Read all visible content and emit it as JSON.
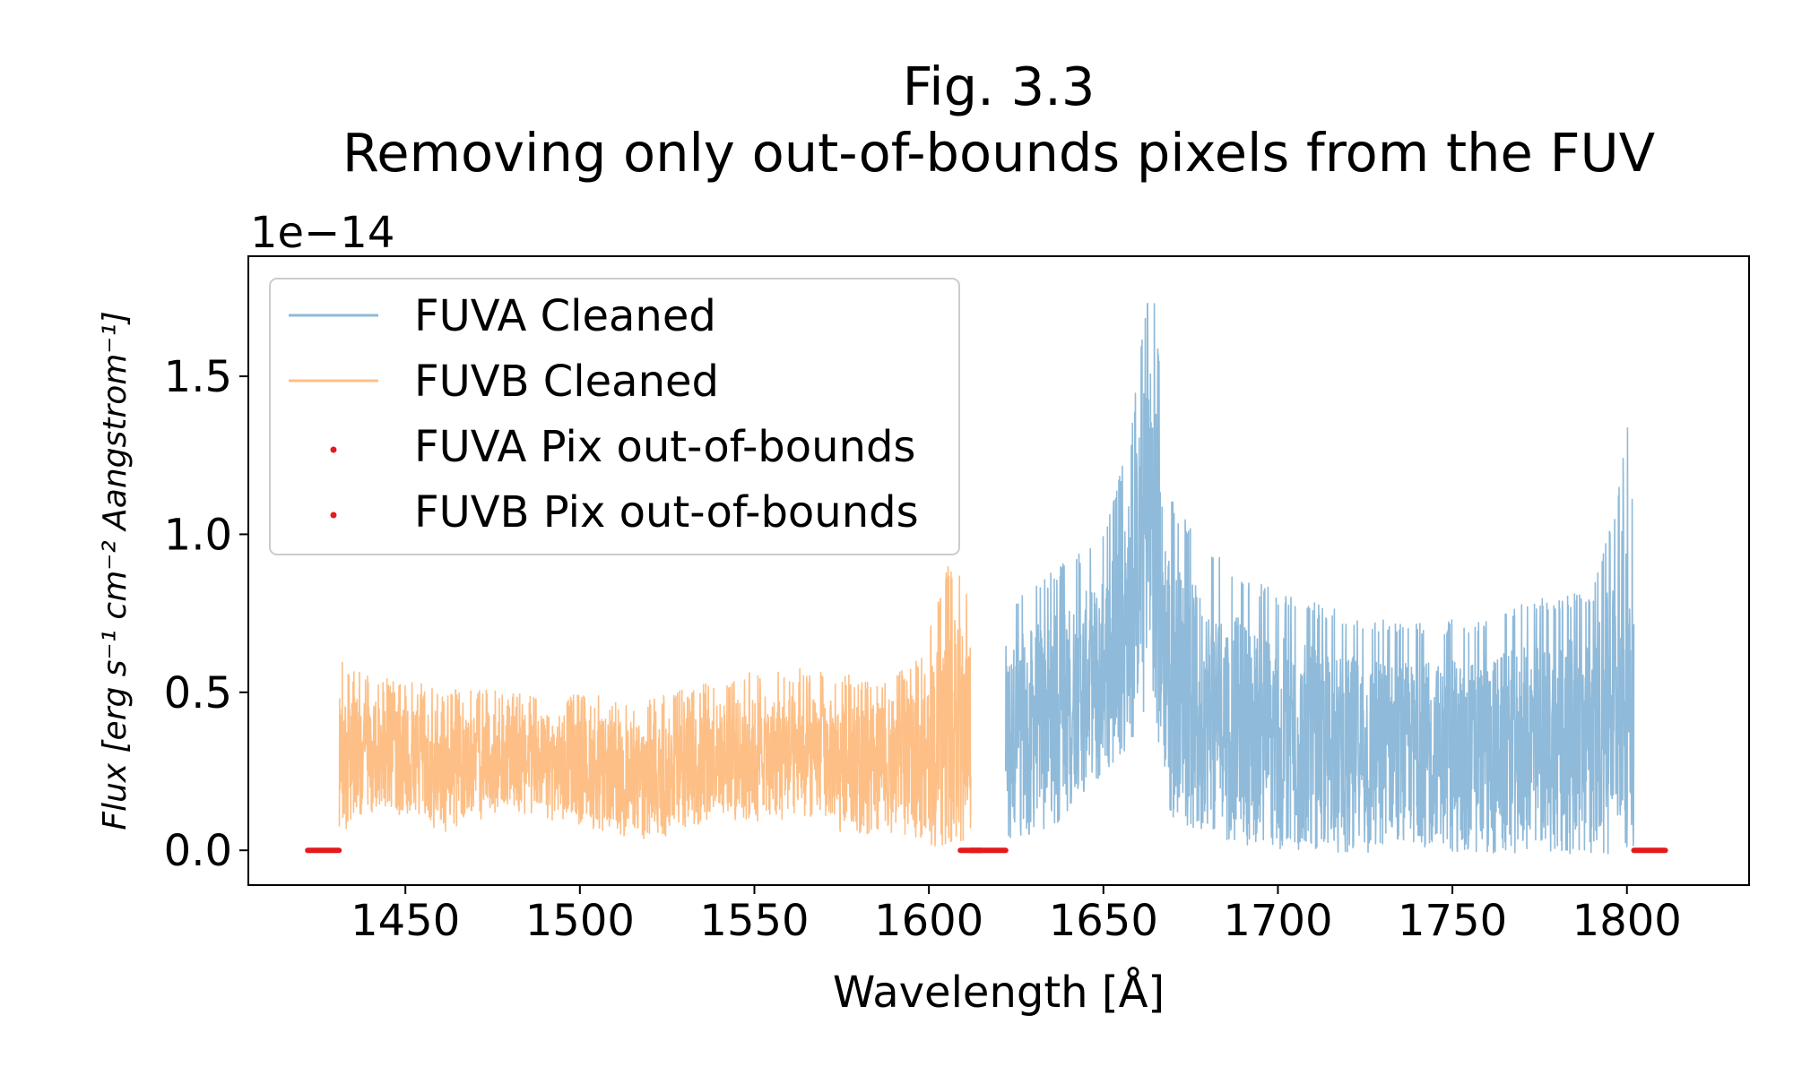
{
  "chart_data": {
    "type": "line",
    "title": "Fig. 3.3",
    "subtitle": "Removing only out-of-bounds pixels from the FUV",
    "xlabel": "Wavelength [Å]",
    "ylabel": "Flux [erg s⁻¹ cm⁻² Aangstrom⁻¹]",
    "y_offset_label": "1e−14",
    "xlim": [
      1405,
      1835
    ],
    "ylim": [
      -0.11,
      1.88
    ],
    "y_scale_factor": 1e-14,
    "xticks": [
      1450,
      1500,
      1550,
      1600,
      1650,
      1700,
      1750,
      1800
    ],
    "yticks": [
      0.0,
      0.5,
      1.0,
      1.5
    ],
    "ytick_labels": [
      "0.0",
      "0.5",
      "1.0",
      "1.5"
    ],
    "grid": false,
    "legend_placement": "top-left",
    "series": [
      {
        "name": "FUVA Cleaned",
        "color": "#8fbad9",
        "kind": "line",
        "x_range": [
          1622,
          1802
        ],
        "envelope_x": [
          1622,
          1630,
          1640,
          1650,
          1655,
          1658,
          1661,
          1663,
          1665,
          1667,
          1670,
          1680,
          1690,
          1700,
          1720,
          1740,
          1760,
          1775,
          1790,
          1797,
          1800,
          1802
        ],
        "envelope_upper_y": [
          0.78,
          0.85,
          0.92,
          1.0,
          1.2,
          1.32,
          1.65,
          1.78,
          1.77,
          1.3,
          1.1,
          0.95,
          0.88,
          0.82,
          0.75,
          0.72,
          0.74,
          0.8,
          0.82,
          1.1,
          1.39,
          1.05
        ],
        "envelope_lower_y": [
          0.02,
          0.05,
          0.1,
          0.22,
          0.28,
          0.32,
          0.4,
          0.55,
          0.45,
          0.15,
          0.1,
          0.05,
          0.02,
          0.0,
          -0.01,
          -0.01,
          -0.01,
          -0.01,
          -0.01,
          -0.02,
          -0.02,
          -0.02
        ]
      },
      {
        "name": "FUVB Cleaned",
        "color": "#fdbf86",
        "kind": "line",
        "x_range": [
          1431,
          1612
        ],
        "envelope_x": [
          1431,
          1440,
          1460,
          1480,
          1500,
          1520,
          1540,
          1560,
          1580,
          1595,
          1600,
          1605,
          1608,
          1612
        ],
        "envelope_upper_y": [
          0.6,
          0.55,
          0.52,
          0.5,
          0.5,
          0.48,
          0.55,
          0.58,
          0.55,
          0.58,
          0.7,
          0.9,
          0.89,
          0.8
        ],
        "envelope_lower_y": [
          0.05,
          0.12,
          0.05,
          0.12,
          0.08,
          0.02,
          0.1,
          0.08,
          0.05,
          0.05,
          0.02,
          0.0,
          0.0,
          0.05
        ]
      },
      {
        "name": "FUVA Pix out-of-bounds",
        "color": "#e41a1c",
        "kind": "scatter",
        "segments": [
          [
            1609,
            1622
          ],
          [
            1802,
            1811
          ]
        ],
        "y": 0.0
      },
      {
        "name": "FUVB Pix out-of-bounds",
        "color": "#e41a1c",
        "kind": "scatter",
        "segments": [
          [
            1422,
            1431
          ],
          [
            1612,
            1615
          ]
        ],
        "y": 0.0
      }
    ]
  }
}
